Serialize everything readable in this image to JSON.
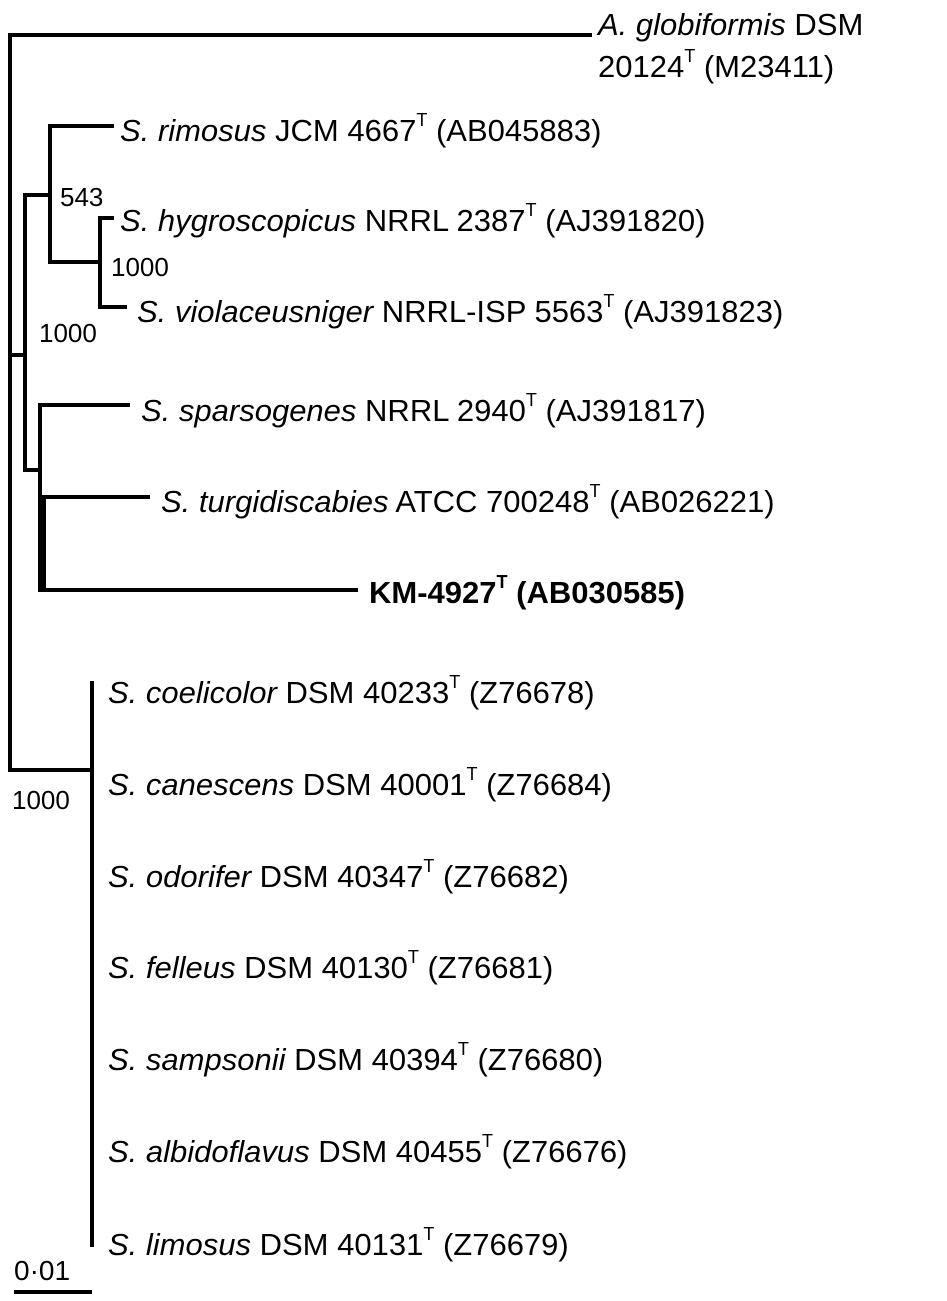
{
  "taxa": {
    "globiformis": {
      "species": "A. globiformis",
      "strain": "DSM 20124",
      "type_mark": "T",
      "accession": "(M23411)"
    },
    "rimosus": {
      "species": "S. rimosus",
      "strain": "JCM 4667",
      "type_mark": "T",
      "accession": "(AB045883)"
    },
    "hygroscopicus": {
      "species": "S. hygroscopicus",
      "strain": "NRRL 2387",
      "type_mark": "T",
      "accession": "(AJ391820)"
    },
    "violaceusniger": {
      "species": "S. violaceusniger",
      "strain": "NRRL-ISP 5563",
      "type_mark": "T",
      "accession": "(AJ391823)"
    },
    "sparsogenes": {
      "species": "S. sparsogenes",
      "strain": "NRRL 2940",
      "type_mark": "T",
      "accession": "(AJ391817)"
    },
    "turgidiscabies": {
      "species": "S. turgidiscabies",
      "strain": "ATCC 700248",
      "type_mark": "T",
      "accession": "(AB026221)"
    },
    "km4927": {
      "strain": "KM-4927",
      "type_mark": "T",
      "accession": "(AB030585)"
    },
    "coelicolor": {
      "species": "S. coelicolor",
      "strain": "DSM 40233",
      "type_mark": "T",
      "accession": "(Z76678)"
    },
    "canescens": {
      "species": "S. canescens",
      "strain": "DSM 40001",
      "type_mark": "T",
      "accession": "(Z76684)"
    },
    "odorifer": {
      "species": "S. odorifer",
      "strain": "DSM 40347",
      "type_mark": "T",
      "accession": "(Z76682)"
    },
    "felleus": {
      "species": "S. felleus",
      "strain": "DSM 40130",
      "type_mark": "T",
      "accession": "(Z76681)"
    },
    "sampsonii": {
      "species": "S. sampsonii",
      "strain": "DSM 40394",
      "type_mark": "T",
      "accession": "(Z76680)"
    },
    "albidoflavus": {
      "species": "S. albidoflavus",
      "strain": "DSM 40455",
      "type_mark": "T",
      "accession": "(Z76676)"
    },
    "limosus": {
      "species": "S. limosus",
      "strain": "DSM 40131",
      "type_mark": "T",
      "accession": "(Z76679)"
    }
  },
  "bootstrap": {
    "rimosus_hygro_node": "543",
    "hygro_violaceus_node": "1000",
    "upper_clade_node": "1000",
    "lower_clade_node": "1000"
  },
  "scale_bar": {
    "label": "0·01"
  },
  "colors": {
    "line": "#000000",
    "text": "#000000",
    "background": "#ffffff"
  }
}
